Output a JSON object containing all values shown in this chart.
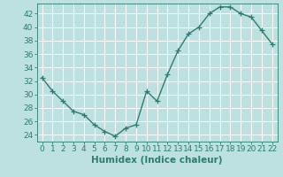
{
  "x": [
    0,
    1,
    2,
    3,
    4,
    5,
    6,
    7,
    8,
    9,
    10,
    11,
    12,
    13,
    14,
    15,
    16,
    17,
    18,
    19,
    20,
    21,
    22
  ],
  "y": [
    32.5,
    30.5,
    29,
    27.5,
    27,
    25.5,
    24.5,
    23.8,
    25,
    25.5,
    30.5,
    29,
    33,
    36.5,
    39,
    40,
    42,
    43,
    43,
    42,
    41.5,
    39.5,
    37.5
  ],
  "line_color": "#2e7d6e",
  "marker": "+",
  "marker_size": 4,
  "linewidth": 1.0,
  "xlabel": "Humidex (Indice chaleur)",
  "xlabel_fontsize": 7.5,
  "background_color": "#bde0e0",
  "grid_color": "#ffffff",
  "grid_linewidth": 0.7,
  "tick_color": "#2e7d6e",
  "axis_color": "#2e7d6e",
  "tick_labelsize": 6.5,
  "ylim": [
    23,
    43.5
  ],
  "yticks": [
    24,
    26,
    28,
    30,
    32,
    34,
    36,
    38,
    40,
    42
  ],
  "xlim": [
    -0.5,
    22.5
  ],
  "xticks": [
    0,
    1,
    2,
    3,
    4,
    5,
    6,
    7,
    8,
    9,
    10,
    11,
    12,
    13,
    14,
    15,
    16,
    17,
    18,
    19,
    20,
    21,
    22
  ]
}
